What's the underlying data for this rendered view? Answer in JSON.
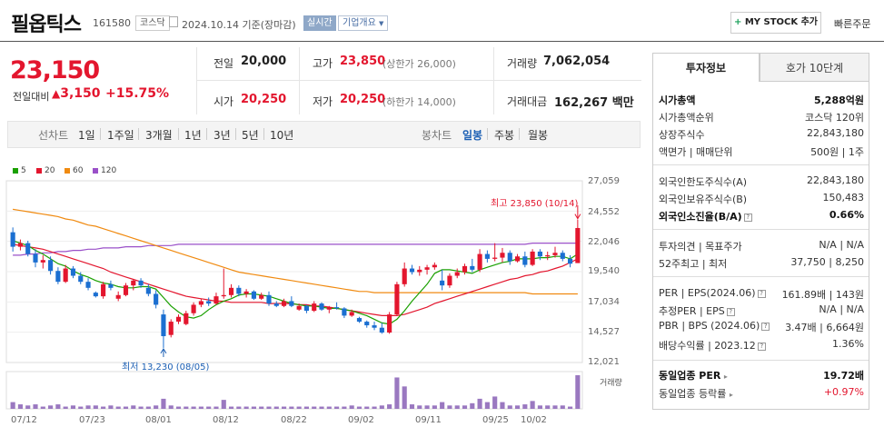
{
  "header": {
    "name": "필옵틱스",
    "code": "161580",
    "market": "코스닥",
    "date": "2024.10.14 기준(장마감)",
    "realtime": "실시간",
    "company_info": "기업개요",
    "my_stock": "MY STOCK 추가",
    "quick_order": "빠른주문"
  },
  "price": {
    "current": "23,150",
    "change_label": "전일대비",
    "change": "3,150",
    "change_pct": "+15.75%"
  },
  "quote": {
    "prev_label": "전일",
    "prev": "20,000",
    "high_label": "고가",
    "high": "23,850",
    "upper_limit": "(상한가 26,000)",
    "volume_label": "거래량",
    "volume": "7,062,054",
    "open_label": "시가",
    "open": "20,250",
    "low_label": "저가",
    "low": "20,250",
    "lower_limit": "(하한가 14,000)",
    "amount_label": "거래대금",
    "amount": "162,267 백만"
  },
  "periods": {
    "line_label": "선차트",
    "line": [
      "1일",
      "1주일",
      "3개월",
      "1년",
      "3년",
      "5년",
      "10년"
    ],
    "candle_label": "봉차트",
    "candle": [
      "일봉",
      "주봉",
      "월봉"
    ],
    "active_candle": "일봉"
  },
  "chart_data": {
    "type": "candlestick",
    "legend": [
      "5",
      "20",
      "60",
      "120"
    ],
    "ma_colors": [
      "#1aa000",
      "#e3162e",
      "#f08a10",
      "#9a50c8"
    ],
    "y_ticks": [
      "27,059",
      "24,552",
      "22,046",
      "19,540",
      "17,034",
      "14,527",
      "12,021"
    ],
    "ylim": [
      12021,
      27059
    ],
    "x_ticks": [
      "07/12",
      "07/23",
      "08/01",
      "08/12",
      "08/22",
      "09/02",
      "09/11",
      "09/25",
      "10/02"
    ],
    "high_annotation": "최고 23,850 (10/14)",
    "low_annotation": "최저 13,230 (08/05)",
    "volume_label": "거래량",
    "candles": [
      [
        22800,
        23200,
        21200,
        21600
      ],
      [
        21600,
        22200,
        21300,
        21900
      ],
      [
        21900,
        22100,
        20800,
        21000
      ],
      [
        21000,
        21400,
        19900,
        20300
      ],
      [
        20300,
        20900,
        19800,
        20500
      ],
      [
        20500,
        20800,
        19300,
        19600
      ],
      [
        19600,
        19900,
        18500,
        18700
      ],
      [
        18700,
        20100,
        18600,
        19800
      ],
      [
        19800,
        20000,
        19000,
        19200
      ],
      [
        19200,
        19500,
        18500,
        18700
      ],
      [
        18700,
        19000,
        18000,
        18200
      ],
      [
        17800,
        17900,
        17400,
        17500
      ],
      [
        17500,
        18700,
        17300,
        18500
      ],
      [
        18500,
        18800,
        18000,
        18200
      ],
      [
        17300,
        17900,
        17100,
        17600
      ],
      [
        17600,
        18600,
        17500,
        18400
      ],
      [
        18400,
        18900,
        18000,
        18800
      ],
      [
        18800,
        19000,
        18200,
        18400
      ],
      [
        18200,
        18500,
        17500,
        17700
      ],
      [
        17700,
        18000,
        16500,
        16800
      ],
      [
        16000,
        16400,
        13230,
        14200
      ],
      [
        14300,
        15600,
        14100,
        15400
      ],
      [
        15400,
        16000,
        15200,
        15800
      ],
      [
        15200,
        16300,
        15100,
        16100
      ],
      [
        16100,
        17000,
        15900,
        16800
      ],
      [
        16800,
        17300,
        16600,
        17100
      ],
      [
        17100,
        17400,
        16700,
        16900
      ],
      [
        16900,
        17800,
        16800,
        17500
      ],
      [
        17500,
        19800,
        17300,
        17600
      ],
      [
        17600,
        18500,
        17400,
        18200
      ],
      [
        18200,
        18400,
        17500,
        17700
      ],
      [
        17700,
        18100,
        17400,
        17900
      ],
      [
        17900,
        18000,
        17200,
        17300
      ],
      [
        17300,
        17800,
        17200,
        17600
      ],
      [
        17600,
        17900,
        16700,
        16900
      ],
      [
        16900,
        17100,
        16600,
        16700
      ],
      [
        16700,
        17300,
        16600,
        17100
      ],
      [
        17100,
        17500,
        16600,
        16700
      ],
      [
        16400,
        16900,
        16300,
        16700
      ],
      [
        16700,
        16800,
        16100,
        16300
      ],
      [
        16300,
        17100,
        16200,
        16900
      ],
      [
        16900,
        17000,
        16300,
        16400
      ],
      [
        16400,
        16700,
        16100,
        16600
      ],
      [
        16600,
        17000,
        16400,
        16500
      ],
      [
        16500,
        16600,
        15700,
        15900
      ],
      [
        15900,
        16400,
        15800,
        16200
      ],
      [
        15700,
        15800,
        15300,
        15400
      ],
      [
        15400,
        15500,
        14900,
        15100
      ],
      [
        15100,
        15400,
        14700,
        14900
      ],
      [
        14900,
        15300,
        14400,
        14500
      ],
      [
        14500,
        16200,
        14400,
        16000
      ],
      [
        16000,
        18700,
        15900,
        18500
      ],
      [
        18500,
        20300,
        18300,
        19800
      ],
      [
        19800,
        20100,
        19300,
        19500
      ],
      [
        19500,
        20000,
        19200,
        19700
      ],
      [
        19700,
        20100,
        19300,
        19900
      ],
      [
        19900,
        20300,
        19700,
        20100
      ],
      [
        18800,
        19700,
        18000,
        18400
      ],
      [
        18400,
        19400,
        18200,
        19200
      ],
      [
        19200,
        19800,
        19000,
        19500
      ],
      [
        19500,
        20200,
        19300,
        20000
      ],
      [
        20000,
        20600,
        19500,
        19700
      ],
      [
        19700,
        21400,
        19500,
        21000
      ],
      [
        21000,
        21300,
        20300,
        20600
      ],
      [
        20600,
        21900,
        20400,
        20700
      ],
      [
        20700,
        21500,
        20300,
        21100
      ],
      [
        21100,
        21300,
        20100,
        20400
      ],
      [
        20400,
        21000,
        20300,
        20800
      ],
      [
        20800,
        21200,
        19900,
        20100
      ],
      [
        20100,
        21400,
        20000,
        21200
      ],
      [
        21200,
        21400,
        20500,
        20800
      ],
      [
        20800,
        21200,
        20500,
        20900
      ],
      [
        20900,
        21600,
        20700,
        21100
      ],
      [
        21100,
        21300,
        20400,
        20600
      ],
      [
        20600,
        20900,
        19900,
        20200
      ],
      [
        20250,
        23850,
        20250,
        23150
      ]
    ],
    "ma5": [
      22100,
      21900,
      21700,
      21300,
      21000,
      20600,
      20200,
      20000,
      19600,
      19300,
      19100,
      18800,
      18600,
      18500,
      18300,
      18200,
      18200,
      18300,
      18300,
      18100,
      17400,
      16700,
      16200,
      15800,
      15700,
      15900,
      16400,
      16800,
      17100,
      17300,
      17600,
      17700,
      17700,
      17600,
      17500,
      17300,
      17100,
      16900,
      16800,
      16700,
      16700,
      16600,
      16500,
      16500,
      16400,
      16300,
      16100,
      15900,
      15600,
      15300,
      15200,
      15600,
      16300,
      17100,
      17800,
      18500,
      19400,
      19700,
      19700,
      19600,
      19500,
      19400,
      19700,
      19900,
      20100,
      20300,
      20400,
      20600,
      20600,
      20600,
      20700,
      20700,
      20800,
      20800,
      20600,
      21000
    ],
    "ma20": [
      21800,
      21700,
      21600,
      21500,
      21400,
      21200,
      21000,
      20800,
      20600,
      20400,
      20200,
      20000,
      19800,
      19500,
      19300,
      19100,
      18900,
      18700,
      18500,
      18300,
      18100,
      17900,
      17700,
      17500,
      17400,
      17300,
      17200,
      17100,
      17100,
      17000,
      17000,
      17000,
      17000,
      17000,
      16900,
      16900,
      16900,
      16900,
      16800,
      16800,
      16700,
      16700,
      16600,
      16500,
      16400,
      16300,
      16200,
      16100,
      16000,
      15900,
      15900,
      15900,
      16000,
      16200,
      16400,
      16600,
      16900,
      17100,
      17300,
      17500,
      17700,
      17900,
      18100,
      18300,
      18500,
      18700,
      18900,
      19000,
      19200,
      19300,
      19500,
      19600,
      19800,
      20000,
      20300,
      20600
    ],
    "ma60": [
      24700,
      24600,
      24500,
      24400,
      24300,
      24200,
      24100,
      23900,
      23800,
      23600,
      23400,
      23300,
      23100,
      22900,
      22700,
      22500,
      22300,
      22100,
      21900,
      21700,
      21500,
      21300,
      21100,
      20900,
      20700,
      20500,
      20300,
      20100,
      19900,
      19700,
      19500,
      19400,
      19300,
      19200,
      19100,
      19000,
      18900,
      18800,
      18700,
      18600,
      18500,
      18400,
      18300,
      18200,
      18100,
      18000,
      17900,
      17900,
      17800,
      17800,
      17800,
      17800,
      17800,
      17800,
      17800,
      17800,
      17800,
      17800,
      17800,
      17800,
      17800,
      17800,
      17800,
      17800,
      17800,
      17800,
      17800,
      17800,
      17800,
      17700,
      17700,
      17700,
      17700,
      17700,
      17700,
      17700
    ],
    "ma120": [
      20900,
      20900,
      21000,
      21000,
      21100,
      21100,
      21200,
      21200,
      21300,
      21300,
      21400,
      21400,
      21500,
      21500,
      21500,
      21600,
      21600,
      21600,
      21700,
      21700,
      21700,
      21700,
      21800,
      21800,
      21800,
      21800,
      21800,
      21800,
      21800,
      21800,
      21800,
      21800,
      21800,
      21800,
      21800,
      21800,
      21800,
      21800,
      21800,
      21800,
      21800,
      21800,
      21800,
      21800,
      21800,
      21800,
      21800,
      21800,
      21800,
      21800,
      21800,
      21800,
      21800,
      21800,
      21800,
      21800,
      21800,
      21800,
      21800,
      21800,
      21800,
      21800,
      21800,
      21800,
      21800,
      21800,
      21800,
      21800,
      21800,
      21900,
      21900,
      21900,
      21900,
      21900,
      21900,
      21900
    ],
    "volume": [
      6,
      4,
      3,
      4,
      2,
      3,
      4,
      2,
      3,
      2,
      3,
      3,
      2,
      3,
      2,
      2,
      3,
      2,
      2,
      3,
      9,
      3,
      2,
      2,
      2,
      2,
      2,
      2,
      8,
      2,
      2,
      2,
      2,
      2,
      2,
      2,
      2,
      2,
      2,
      2,
      2,
      2,
      2,
      2,
      2,
      3,
      2,
      2,
      2,
      3,
      4,
      28,
      20,
      4,
      3,
      3,
      3,
      6,
      3,
      3,
      3,
      5,
      9,
      6,
      11,
      6,
      3,
      3,
      4,
      7,
      3,
      3,
      3,
      3,
      2,
      30
    ]
  },
  "info_panel": {
    "tab_active": "투자정보",
    "tab_other": "호가 10단계",
    "market_cap_label": "시가총액",
    "market_cap": "5,288억원",
    "rank_label": "시가총액순위",
    "rank": "코스닥 120위",
    "shares_label": "상장주식수",
    "shares": "22,843,180",
    "par_label": "액면가 | 매매단위",
    "par": "500원 | 1주",
    "foreign_limit_label": "외국인한도주식수(A)",
    "foreign_limit": "22,843,180",
    "foreign_hold_label": "외국인보유주식수(B)",
    "foreign_hold": "150,483",
    "foreign_ratio_label": "외국인소진율(B/A)",
    "foreign_ratio": "0.66%",
    "opinion_label": "투자의견 | 목표주가",
    "opinion": "N/A | N/A",
    "week52_label": "52주최고 | 최저",
    "week52": "37,750 | 8,250",
    "per_label": "PER | EPS(2024.06)",
    "per": "161.89배 | 143원",
    "est_per_label": "추정PER | EPS",
    "est_per": "N/A | N/A",
    "pbr_label": "PBR | BPS (2024.06)",
    "pbr": "3.47배 | 6,664원",
    "dividend_label": "배당수익률 | 2023.12",
    "dividend": "1.36%",
    "sector_per_label": "동일업종 PER",
    "sector_per": "19.72배",
    "sector_chg_label": "동일업종 등락률",
    "sector_chg": "+0.97%"
  }
}
